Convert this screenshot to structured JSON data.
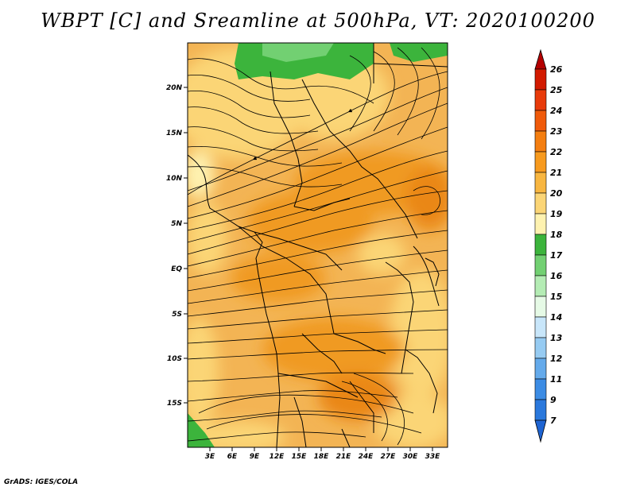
{
  "title": "WBPT [C] and Sreamline at 500hPa, VT: 2020100200",
  "credit": "GrADS: IGES/COLA",
  "map": {
    "lat_labels": [
      "20N",
      "15N",
      "10N",
      "5N",
      "EQ",
      "5S",
      "10S",
      "15S"
    ],
    "lon_labels": [
      "3E",
      "6E",
      "9E",
      "12E",
      "15E",
      "18E",
      "21E",
      "24E",
      "27E",
      "30E",
      "33E"
    ]
  },
  "colorbar": {
    "labels": [
      "26",
      "25",
      "24",
      "23",
      "22",
      "21",
      "20",
      "19",
      "18",
      "17",
      "16",
      "15",
      "14",
      "13",
      "12",
      "11",
      "9",
      "7"
    ],
    "colors": [
      "#b40000",
      "#d21a00",
      "#e83a0a",
      "#f05a0a",
      "#f47e10",
      "#f79a1e",
      "#f8b640",
      "#fbd576",
      "#fef2b0",
      "#3cb43c",
      "#72d072",
      "#b4ecb4",
      "#e6fae6",
      "#c8e6fa",
      "#96cbf2",
      "#64aaeb",
      "#3c8ce4",
      "#1e64d2"
    ]
  },
  "colors": {
    "green": "#3cb43c",
    "orange": "#f0a030",
    "dark_orange": "#e88a1a",
    "yellow": "#fbd576",
    "pale": "#fef2b0"
  }
}
